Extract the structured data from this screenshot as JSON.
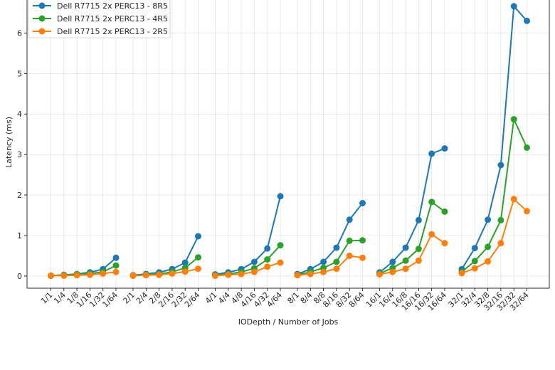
{
  "chart_data": {
    "type": "line",
    "title": "",
    "xlabel": "IODepth / Number of Jobs",
    "ylabel": "Latency (ms)",
    "ylim": [
      -0.3,
      6.85
    ],
    "yticks": [
      0,
      1,
      2,
      3,
      4,
      5,
      6
    ],
    "grid": true,
    "legend_position": "top-left",
    "groups": [
      {
        "name": "1",
        "categories": [
          "1/1",
          "1/4",
          "1/8",
          "1/16",
          "1/32",
          "1/64"
        ]
      },
      {
        "name": "2",
        "categories": [
          "2/1",
          "2/4",
          "2/8",
          "2/16",
          "2/32",
          "2/64"
        ]
      },
      {
        "name": "4",
        "categories": [
          "4/1",
          "4/4",
          "4/8",
          "4/16",
          "4/32",
          "4/64"
        ]
      },
      {
        "name": "8",
        "categories": [
          "8/1",
          "8/4",
          "8/8",
          "8/16",
          "8/32",
          "8/64"
        ]
      },
      {
        "name": "16",
        "categories": [
          "16/1",
          "16/4",
          "16/8",
          "16/16",
          "16/32",
          "16/64"
        ]
      },
      {
        "name": "32",
        "categories": [
          "32/1",
          "32/4",
          "32/8",
          "32/16",
          "32/32",
          "32/64"
        ]
      }
    ],
    "series": [
      {
        "name": "Dell R7715 2x PERC13 - 8R5",
        "color": "#1f77b4",
        "groups": [
          [
            0.01,
            0.03,
            0.05,
            0.09,
            0.17,
            0.45
          ],
          [
            0.02,
            0.05,
            0.09,
            0.17,
            0.33,
            0.98
          ],
          [
            0.04,
            0.09,
            0.17,
            0.35,
            0.68,
            1.97
          ],
          [
            0.05,
            0.17,
            0.35,
            0.7,
            1.39,
            1.8
          ],
          [
            0.09,
            0.35,
            0.7,
            1.38,
            3.02,
            3.15
          ],
          [
            0.17,
            0.69,
            1.39,
            2.74,
            6.66,
            6.3
          ]
        ]
      },
      {
        "name": "Dell R7715 2x PERC13 - 4R5",
        "color": "#2ca02c",
        "groups": [
          [
            0.01,
            0.02,
            0.04,
            0.06,
            0.1,
            0.26
          ],
          [
            0.01,
            0.03,
            0.05,
            0.1,
            0.2,
            0.46
          ],
          [
            0.02,
            0.05,
            0.1,
            0.19,
            0.41,
            0.76
          ],
          [
            0.03,
            0.1,
            0.2,
            0.35,
            0.87,
            0.88
          ],
          [
            0.06,
            0.2,
            0.38,
            0.67,
            1.83,
            1.59
          ],
          [
            0.1,
            0.37,
            0.72,
            1.38,
            3.87,
            3.17
          ]
        ]
      },
      {
        "name": "Dell R7715 2x PERC13 - 2R5",
        "color": "#ff7f0e",
        "groups": [
          [
            0.01,
            0.01,
            0.02,
            0.03,
            0.06,
            0.1
          ],
          [
            0.01,
            0.02,
            0.03,
            0.06,
            0.11,
            0.18
          ],
          [
            0.01,
            0.03,
            0.05,
            0.1,
            0.23,
            0.33
          ],
          [
            0.02,
            0.05,
            0.1,
            0.18,
            0.5,
            0.45
          ],
          [
            0.04,
            0.1,
            0.18,
            0.38,
            1.03,
            0.81
          ],
          [
            0.07,
            0.19,
            0.36,
            0.81,
            1.9,
            1.6
          ]
        ]
      }
    ]
  }
}
